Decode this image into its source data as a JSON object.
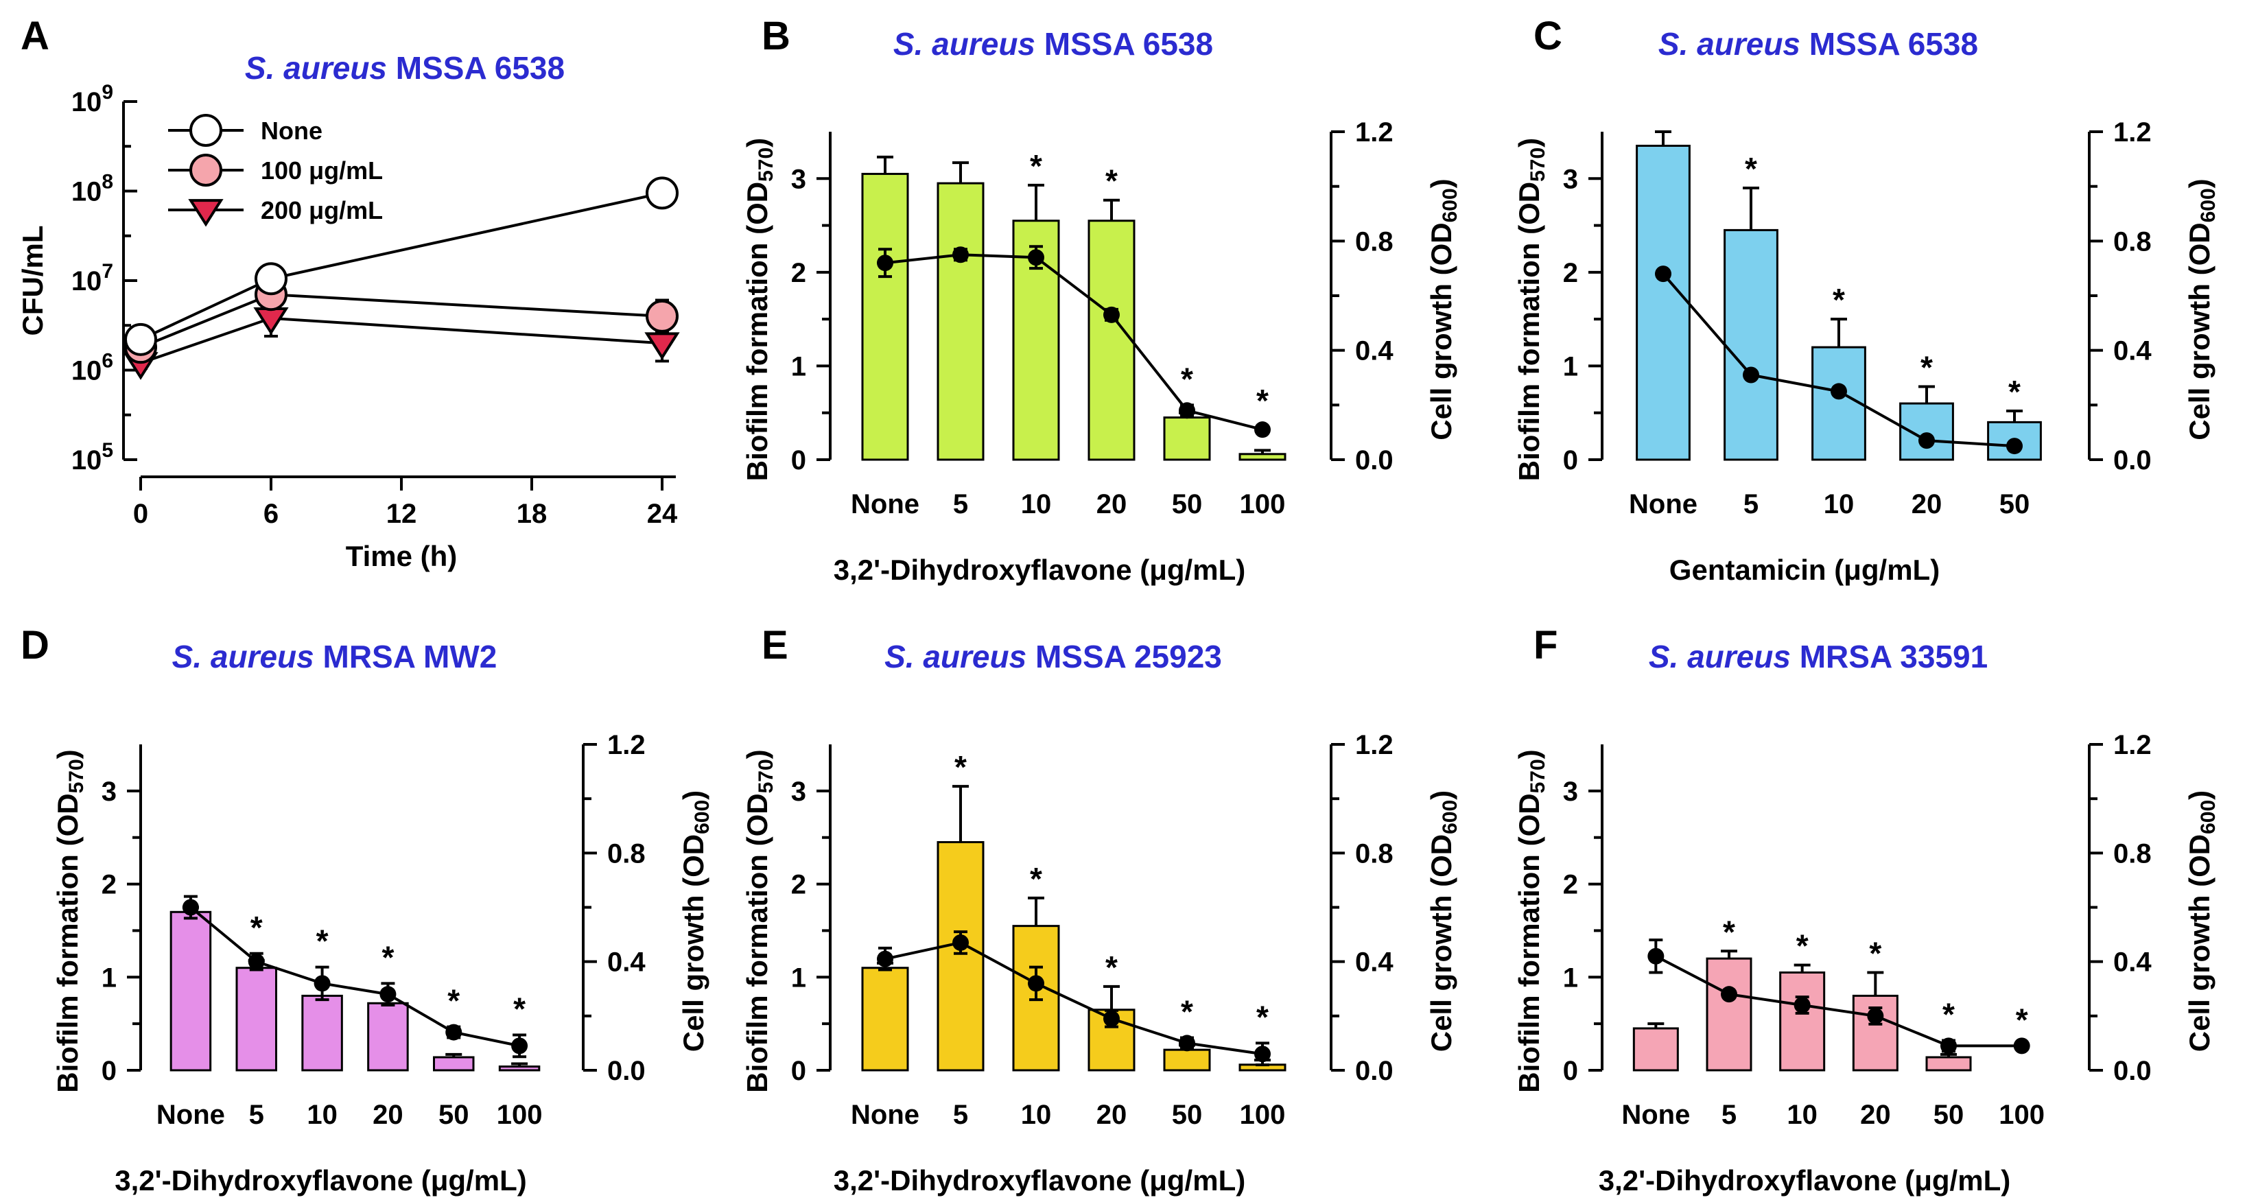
{
  "colors": {
    "title_blue": "#2b2bd0",
    "bar_colors": {
      "B": "#c8f04c",
      "C": "#7dd0ee",
      "D": "#e58fe8",
      "E": "#f5cc1c",
      "F": "#f5a5b5"
    },
    "none_marker": "#ffffff",
    "marker_100": "#f5a5ac",
    "marker_200": "#e0284c"
  },
  "chart_data": [
    {
      "panel": "A",
      "type": "line",
      "title_italic": "S. aureus",
      "title_rest": " MSSA 6538",
      "xlabel": "Time (h)",
      "ylabel": "CFU/mL",
      "yscale": "log",
      "ylim_exponents": [
        5,
        9
      ],
      "y_tick_base": "10",
      "y_tick_exponents": [
        "5",
        "6",
        "7",
        "8",
        "9"
      ],
      "x_ticks": [
        "0",
        "6",
        "12",
        "18",
        "24"
      ],
      "xlim": [
        0,
        24
      ],
      "series": [
        {
          "name": "None",
          "x": [
            0,
            6,
            24
          ],
          "y": [
            2200000,
            10500000,
            95000000
          ],
          "err": [
            0.06,
            0.06,
            0.04
          ],
          "marker": "circle-open"
        },
        {
          "name": "100 μg/mL",
          "x": [
            0,
            6,
            24
          ],
          "y": [
            1800000,
            7000000,
            4000000
          ],
          "err": [
            0.06,
            0.1,
            0.18
          ],
          "marker": "circle-pink"
        },
        {
          "name": "200 μg/mL",
          "x": [
            0,
            6,
            24
          ],
          "y": [
            1200000,
            3800000,
            2000000
          ],
          "err": [
            0.06,
            0.2,
            0.2
          ],
          "marker": "triangle-red"
        }
      ]
    },
    {
      "panel": "B",
      "type": "bar",
      "title_italic": "S. aureus",
      "title_rest": " MSSA 6538",
      "xlabel": "3,2'-Dihydroxyflavone (μg/mL)",
      "categories": [
        "None",
        "5",
        "10",
        "20",
        "50",
        "100"
      ],
      "biofilm": [
        3.05,
        2.95,
        2.55,
        2.55,
        0.45,
        0.06
      ],
      "biofilm_err": [
        0.18,
        0.22,
        0.38,
        0.22,
        0.05,
        0.04
      ],
      "growth": [
        0.72,
        0.75,
        0.74,
        0.53,
        0.18,
        0.11
      ],
      "growth_err": [
        0.05,
        0.02,
        0.04,
        0.02,
        0.02,
        0.01
      ],
      "stars": [
        false,
        false,
        true,
        true,
        true,
        true
      ],
      "ylim_left": [
        0,
        3.5
      ],
      "yticks_left": [
        "0",
        "1",
        "2",
        "3"
      ],
      "ylim_right": [
        0,
        1.2
      ],
      "yticks_right": [
        "0.0",
        "0.4",
        "0.8",
        "1.2"
      ]
    },
    {
      "panel": "C",
      "type": "bar",
      "title_italic": "S. aureus",
      "title_rest": " MSSA 6538",
      "xlabel": "Gentamicin (μg/mL)",
      "categories": [
        "None",
        "5",
        "10",
        "20",
        "50"
      ],
      "biofilm": [
        3.35,
        2.45,
        1.2,
        0.6,
        0.4
      ],
      "biofilm_err": [
        0.15,
        0.45,
        0.3,
        0.18,
        0.12
      ],
      "growth": [
        0.68,
        0.31,
        0.25,
        0.07,
        0.05
      ],
      "growth_err": [
        0.0,
        0.0,
        0.0,
        0.0,
        0.0
      ],
      "stars": [
        false,
        true,
        true,
        true,
        true
      ],
      "ylim_left": [
        0,
        3.5
      ],
      "yticks_left": [
        "0",
        "1",
        "2",
        "3"
      ],
      "ylim_right": [
        0,
        1.2
      ],
      "yticks_right": [
        "0.0",
        "0.4",
        "0.8",
        "1.2"
      ]
    },
    {
      "panel": "D",
      "type": "bar",
      "title_italic": "S. aureus",
      "title_rest": " MRSA MW2",
      "xlabel": "3,2'-Dihydroxyflavone (μg/mL)",
      "categories": [
        "None",
        "5",
        "10",
        "20",
        "50",
        "100"
      ],
      "biofilm": [
        1.7,
        1.1,
        0.8,
        0.72,
        0.14,
        0.04
      ],
      "biofilm_err": [
        0.05,
        0.08,
        0.0,
        0.0,
        0.03,
        0.03
      ],
      "growth": [
        0.6,
        0.4,
        0.32,
        0.28,
        0.14,
        0.09
      ],
      "growth_err": [
        0.04,
        0.03,
        0.06,
        0.04,
        0.02,
        0.04
      ],
      "stars": [
        false,
        true,
        true,
        true,
        true,
        true
      ],
      "ylim_left": [
        0,
        3.5
      ],
      "yticks_left": [
        "0",
        "1",
        "2",
        "3"
      ],
      "ylim_right": [
        0,
        1.2
      ],
      "yticks_right": [
        "0.0",
        "0.4",
        "0.8",
        "1.2"
      ]
    },
    {
      "panel": "E",
      "type": "bar",
      "title_italic": "S. aureus",
      "title_rest": " MSSA 25923",
      "xlabel": "3,2'-Dihydroxyflavone (μg/mL)",
      "categories": [
        "None",
        "5",
        "10",
        "20",
        "50",
        "100"
      ],
      "biofilm": [
        1.1,
        2.45,
        1.55,
        0.65,
        0.22,
        0.06
      ],
      "biofilm_err": [
        0.05,
        0.6,
        0.3,
        0.25,
        0.05,
        0.05
      ],
      "growth": [
        0.41,
        0.47,
        0.32,
        0.19,
        0.1,
        0.06
      ],
      "growth_err": [
        0.04,
        0.04,
        0.06,
        0.03,
        0.02,
        0.04
      ],
      "stars": [
        false,
        true,
        true,
        true,
        true,
        true
      ],
      "ylim_left": [
        0,
        3.5
      ],
      "yticks_left": [
        "0",
        "1",
        "2",
        "3"
      ],
      "ylim_right": [
        0,
        1.2
      ],
      "yticks_right": [
        "0.0",
        "0.4",
        "0.8",
        "1.2"
      ]
    },
    {
      "panel": "F",
      "type": "bar",
      "title_italic": "S. aureus",
      "title_rest": " MRSA 33591",
      "xlabel": "3,2'-Dihydroxyflavone (μg/mL)",
      "categories": [
        "None",
        "5",
        "10",
        "20",
        "50",
        "100"
      ],
      "biofilm": [
        0.45,
        1.2,
        1.05,
        0.8,
        0.14,
        0.0
      ],
      "biofilm_err": [
        0.05,
        0.08,
        0.08,
        0.25,
        0.03,
        0.0
      ],
      "growth": [
        0.42,
        0.28,
        0.24,
        0.2,
        0.09,
        0.09
      ],
      "growth_err": [
        0.06,
        0.0,
        0.03,
        0.03,
        0.02,
        0.0
      ],
      "stars": [
        false,
        true,
        true,
        true,
        true,
        true
      ],
      "ylim_left": [
        0,
        3.5
      ],
      "yticks_left": [
        "0",
        "1",
        "2",
        "3"
      ],
      "ylim_right": [
        0,
        1.2
      ],
      "yticks_right": [
        "0.0",
        "0.4",
        "0.8",
        "1.2"
      ]
    }
  ],
  "common": {
    "ylabel_left": "Biofilm formation (OD",
    "ylabel_left_sub": "570",
    "ylabel_right": "Cell growth (OD",
    "ylabel_right_sub": "600",
    "paren_close": ")",
    "star_symbol": "*"
  }
}
